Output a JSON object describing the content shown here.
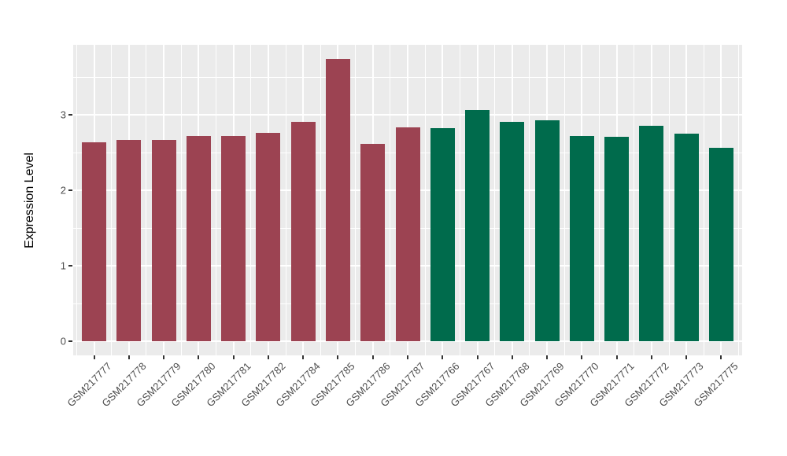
{
  "chart_data": {
    "type": "bar",
    "title": "",
    "xlabel": "",
    "ylabel": "Expression Level",
    "ylim": [
      0,
      3.93
    ],
    "yticks": [
      0,
      1,
      2,
      3
    ],
    "yminor": [
      0.5,
      1.5,
      2.5,
      3.5
    ],
    "grid": "on",
    "legend": "none",
    "panel_background": "#EBEBEB",
    "gridline_color": "#FFFFFF",
    "tick_color": "#333333",
    "tick_label_color": "#4D4D4D",
    "group_colors": {
      "group1": "#9C4352",
      "group2": "#006B4C"
    },
    "bars": [
      {
        "label": "GSM217777",
        "value": 2.64,
        "group": "group1"
      },
      {
        "label": "GSM217778",
        "value": 2.67,
        "group": "group1"
      },
      {
        "label": "GSM217779",
        "value": 2.67,
        "group": "group1"
      },
      {
        "label": "GSM217780",
        "value": 2.72,
        "group": "group1"
      },
      {
        "label": "GSM217781",
        "value": 2.72,
        "group": "group1"
      },
      {
        "label": "GSM217782",
        "value": 2.76,
        "group": "group1"
      },
      {
        "label": "GSM217784",
        "value": 2.91,
        "group": "group1"
      },
      {
        "label": "GSM217785",
        "value": 3.74,
        "group": "group1"
      },
      {
        "label": "GSM217786",
        "value": 2.62,
        "group": "group1"
      },
      {
        "label": "GSM217787",
        "value": 2.84,
        "group": "group1"
      },
      {
        "label": "GSM217766",
        "value": 2.82,
        "group": "group2"
      },
      {
        "label": "GSM217767",
        "value": 3.06,
        "group": "group2"
      },
      {
        "label": "GSM217768",
        "value": 2.91,
        "group": "group2"
      },
      {
        "label": "GSM217769",
        "value": 2.93,
        "group": "group2"
      },
      {
        "label": "GSM217770",
        "value": 2.72,
        "group": "group2"
      },
      {
        "label": "GSM217771",
        "value": 2.71,
        "group": "group2"
      },
      {
        "label": "GSM217772",
        "value": 2.86,
        "group": "group2"
      },
      {
        "label": "GSM217773",
        "value": 2.75,
        "group": "group2"
      },
      {
        "label": "GSM217775",
        "value": 2.56,
        "group": "group2"
      }
    ]
  }
}
